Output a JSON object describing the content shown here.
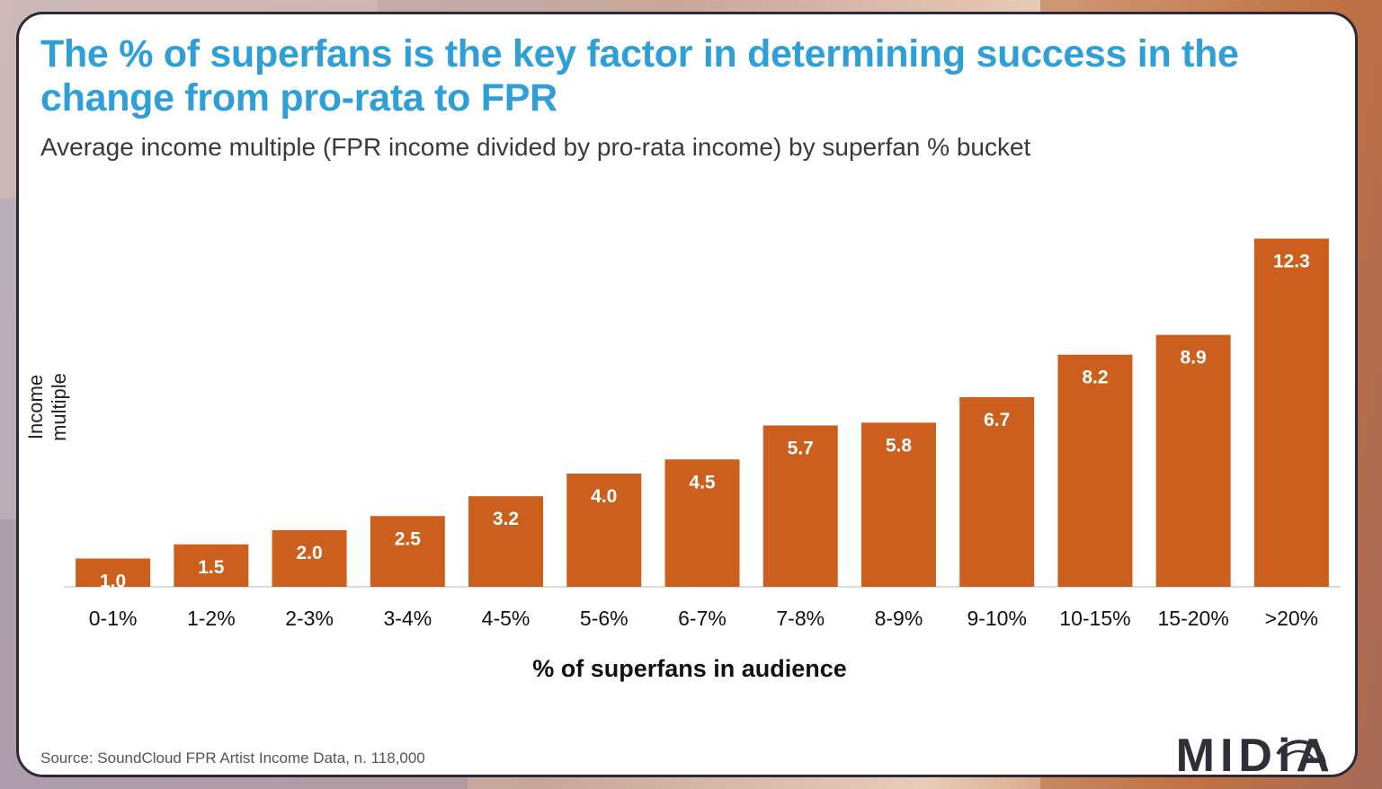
{
  "title": "The % of superfans is the key factor in determining success in the change from pro-rata to FPR",
  "subtitle": "Average income multiple (FPR income divided by pro-rata income) by superfan % bucket",
  "source": "Source: SoundCloud FPR Artist Income Data, n. 118,000",
  "logo": "MIDiA",
  "colors": {
    "title": "#2f9fd8",
    "bar": "#cc5f1d",
    "bar_label": "#ffffff",
    "axis": "#d0d0d0"
  },
  "chart_data": {
    "type": "bar",
    "categories": [
      "0-1%",
      "1-2%",
      "2-3%",
      "3-4%",
      "4-5%",
      "5-6%",
      "6-7%",
      "7-8%",
      "8-9%",
      "9-10%",
      "10-15%",
      "15-20%",
      ">20%"
    ],
    "values": [
      1.0,
      1.5,
      2.0,
      2.5,
      3.2,
      4.0,
      4.5,
      5.7,
      5.8,
      6.7,
      8.2,
      8.9,
      12.3
    ],
    "value_labels": [
      "1.0",
      "1.5",
      "2.0",
      "2.5",
      "3.2",
      "4.0",
      "4.5",
      "5.7",
      "5.8",
      "6.7",
      "8.2",
      "8.9",
      "12.3"
    ],
    "xlabel": "% of superfans in audience",
    "ylabel": "Income multiple",
    "ylim": [
      0,
      13
    ],
    "grid": false,
    "legend": "none"
  }
}
